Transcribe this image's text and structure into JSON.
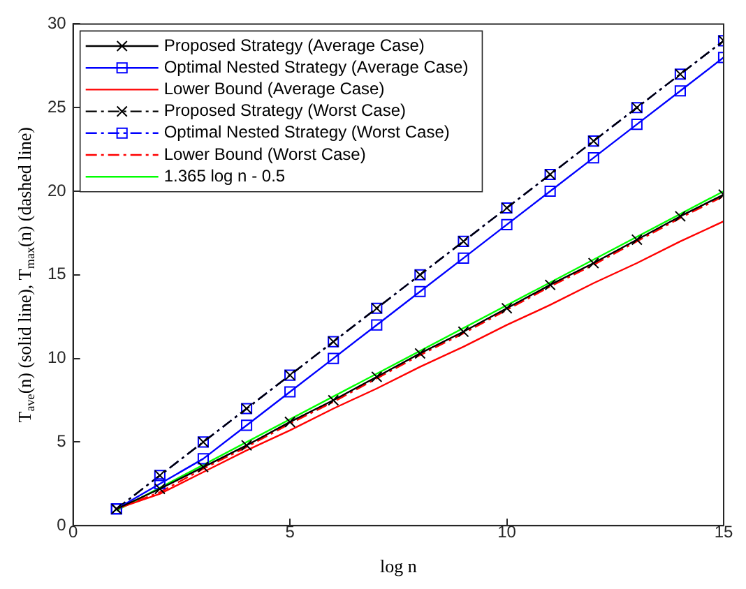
{
  "chart_data": {
    "type": "line",
    "xlabel": "log n",
    "ylabel": "T$_{ave}$(n) (solid line), T$_{max}$(n) (dashed line)",
    "x": [
      1,
      2,
      3,
      4,
      5,
      6,
      7,
      8,
      9,
      10,
      11,
      12,
      13,
      14,
      15
    ],
    "xlim": [
      0,
      15
    ],
    "xticks": [
      0,
      5,
      10,
      15
    ],
    "ylim": [
      0,
      30
    ],
    "yticks": [
      0,
      5,
      10,
      15,
      20,
      25,
      30
    ],
    "grid": false,
    "legend": "top left",
    "series": [
      {
        "name": "Proposed Strategy (Average Case)",
        "color": "#000000",
        "marker": "cross",
        "line_style": "solid",
        "values": [
          1,
          2.2,
          3.5,
          4.8,
          6.2,
          7.5,
          8.9,
          10.3,
          11.6,
          13.0,
          14.4,
          15.7,
          17.1,
          18.5,
          19.8
        ]
      },
      {
        "name": "Optimal Nested Strategy (Average Case)",
        "color": "#0000ff",
        "marker": "square",
        "line_style": "solid",
        "values": [
          1,
          2.5,
          4,
          6,
          8,
          10,
          12,
          14,
          16,
          18,
          20,
          22,
          24,
          26,
          28
        ]
      },
      {
        "name": "Lower Bound (Average Case)",
        "color": "#ff0000",
        "marker": "none",
        "line_style": "solid",
        "values": [
          1,
          1.9,
          3.2,
          4.5,
          5.7,
          7.0,
          8.2,
          9.5,
          10.7,
          12.0,
          13.2,
          14.5,
          15.7,
          17.0,
          18.2
        ]
      },
      {
        "name": "Proposed Strategy (Worst Case)",
        "color": "#000000",
        "marker": "cross",
        "line_style": "dashdot",
        "values": [
          1,
          3,
          5,
          7,
          9,
          11,
          13,
          15,
          17,
          19,
          21,
          23,
          25,
          27,
          29
        ]
      },
      {
        "name": "Optimal Nested Strategy (Worst Case)",
        "color": "#0000ff",
        "marker": "square",
        "line_style": "dashdot",
        "values": [
          1,
          3,
          5,
          7,
          9,
          11,
          13,
          15,
          17,
          19,
          21,
          23,
          25,
          27,
          29
        ]
      },
      {
        "name": "Lower Bound (Worst Case)",
        "color": "#ff0000",
        "marker": "none",
        "line_style": "dashdot",
        "values": [
          1,
          2.0,
          3.4,
          4.7,
          6.1,
          7.4,
          8.8,
          10.2,
          11.5,
          12.9,
          14.3,
          15.6,
          17.0,
          18.4,
          19.7
        ]
      },
      {
        "name": "1.365 log n - 0.5",
        "color": "#00ff00",
        "marker": "none",
        "line_style": "solid",
        "x": [
          1,
          15
        ],
        "values": [
          0.9,
          20.0
        ]
      }
    ]
  }
}
